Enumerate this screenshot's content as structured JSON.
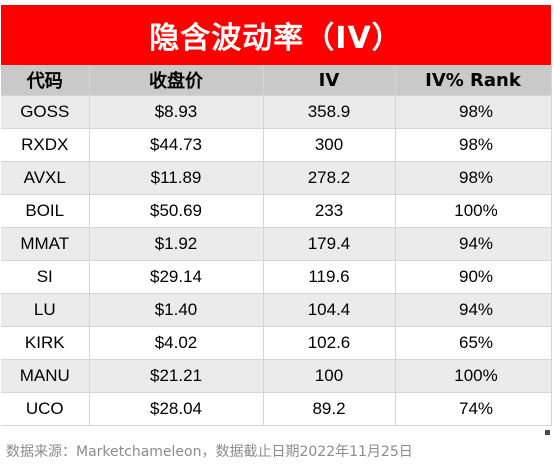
{
  "title": "隐含波动率（IV）",
  "colors": {
    "title_bg": "#ff0000",
    "title_text": "#ffffff",
    "header_bg": "#c9c9c9",
    "row_alt_bg": "#ebebeb",
    "footer_text": "#8c8c8c"
  },
  "table": {
    "headers": [
      "代码",
      "收盘价",
      "IV",
      "IV% Rank"
    ],
    "rows": [
      [
        "GOSS",
        "$8.93",
        "358.9",
        "98%"
      ],
      [
        "RXDX",
        "$44.73",
        "300",
        "98%"
      ],
      [
        "AVXL",
        "$11.89",
        "278.2",
        "98%"
      ],
      [
        "BOIL",
        "$50.69",
        "233",
        "100%"
      ],
      [
        "MMAT",
        "$1.92",
        "179.4",
        "94%"
      ],
      [
        "SI",
        "$29.14",
        "119.6",
        "90%"
      ],
      [
        "LU",
        "$1.40",
        "104.4",
        "94%"
      ],
      [
        "KIRK",
        "$4.02",
        "102.6",
        "65%"
      ],
      [
        "MANU",
        "$21.21",
        "100",
        "100%"
      ],
      [
        "UCO",
        "$28.04",
        "89.2",
        "74%"
      ]
    ]
  },
  "footer": "数据来源：Marketchameleon，数据截止日期2022年11月25日"
}
